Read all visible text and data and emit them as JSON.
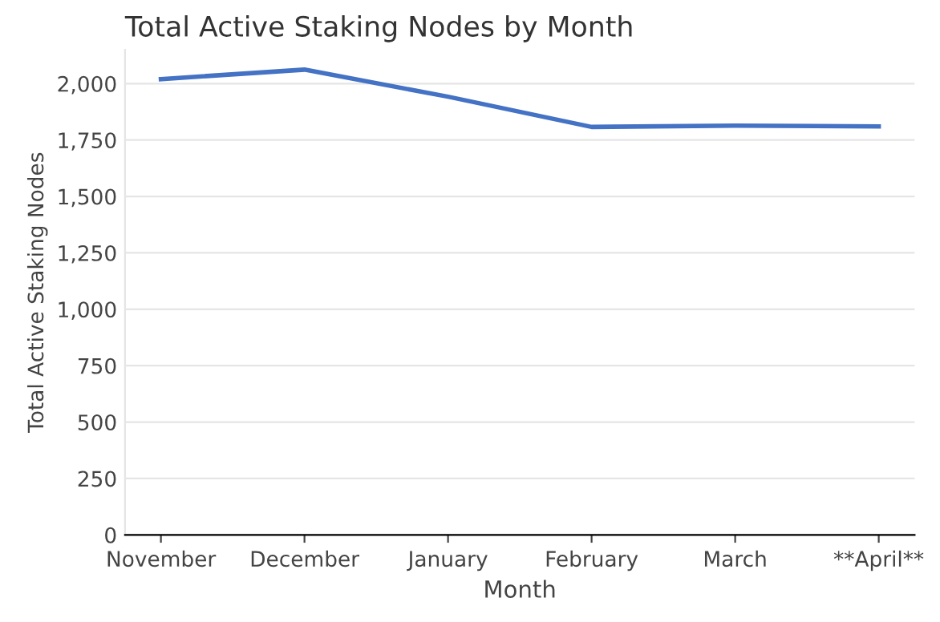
{
  "chart_data": {
    "type": "line",
    "title": "Total Active Staking Nodes by Month",
    "xlabel": "Month",
    "ylabel": "Total Active Staking Nodes",
    "categories": [
      "November",
      "December",
      "January",
      "February",
      "March",
      "**April**"
    ],
    "series": [
      {
        "color": "#4472c4",
        "values": [
          2020,
          2062,
          1942,
          1808,
          1814,
          1810
        ]
      }
    ],
    "ylim": [
      0,
      2150
    ],
    "yticks": [
      0,
      250,
      500,
      750,
      {
        "value": 1000,
        "label": "1,000"
      },
      {
        "value": 1250,
        "label": "1,250"
      },
      {
        "value": 1500,
        "label": "1,500"
      },
      {
        "value": 1750,
        "label": "1,750"
      },
      {
        "value": 2000,
        "label": "2,000"
      }
    ],
    "grid": "y",
    "legend": false,
    "marker": "none",
    "line_style": "solid"
  }
}
